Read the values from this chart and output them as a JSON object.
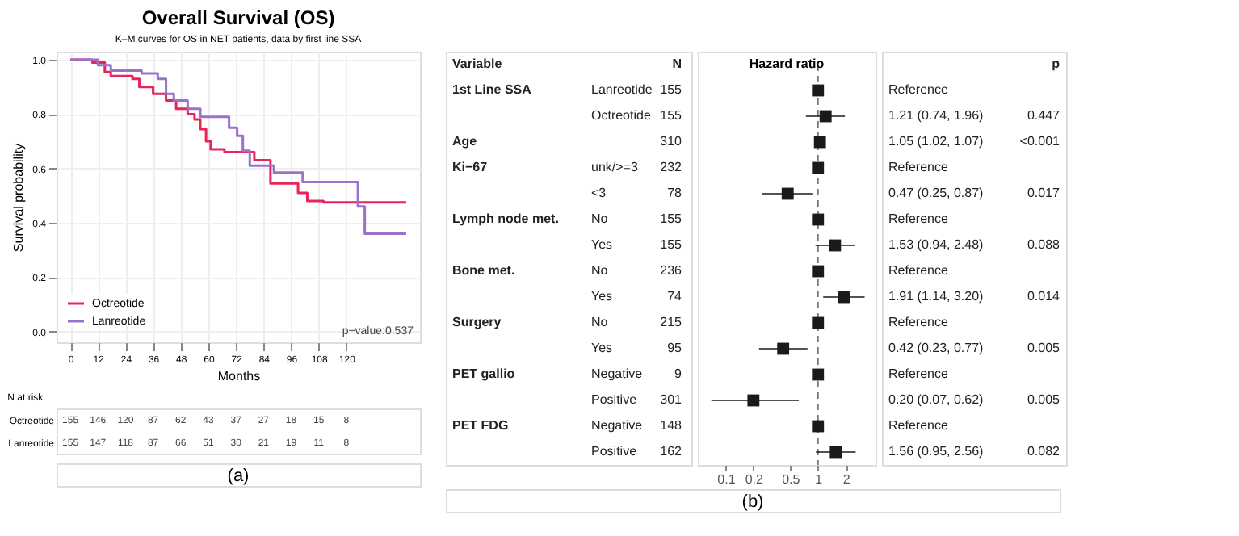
{
  "chart_data": [
    {
      "type": "step",
      "title": "Overall Survival (OS)",
      "subtitle": "K–M curves for OS in NET patients, data by first line SSA",
      "xlabel": "Months",
      "ylabel": "Survival probability",
      "xlim": [
        -6,
        152
      ],
      "ylim": [
        -0.04,
        1.03
      ],
      "xticks": [
        0,
        12,
        24,
        36,
        48,
        60,
        72,
        84,
        96,
        108,
        120
      ],
      "yticks": [
        {
          "value": 0,
          "label": "0.0"
        },
        0.2,
        0.4,
        0.6,
        0.8,
        {
          "value": 1,
          "label": "1.0"
        }
      ],
      "grid": true,
      "legend": "bottom left",
      "series": [
        {
          "name": "Octreotide",
          "color": "#e8245a",
          "x": [
            0,
            9.6,
            15,
            17.6,
            27,
            30,
            36,
            41.6,
            46,
            51,
            54,
            56.5,
            59,
            61,
            67,
            80,
            87,
            99,
            103,
            110,
            146
          ],
          "values": [
            1.0,
            0.99,
            0.955,
            0.94,
            0.93,
            0.9,
            0.875,
            0.85,
            0.82,
            0.8,
            0.78,
            0.745,
            0.7,
            0.67,
            0.66,
            0.63,
            0.545,
            0.51,
            0.48,
            0.475,
            0.475
          ]
        },
        {
          "name": "Lanreotide",
          "color": "#9a72c8",
          "x": [
            0,
            12,
            17.6,
            31,
            38,
            41.6,
            45,
            51,
            56.5,
            69,
            72.5,
            75,
            78,
            88.5,
            101,
            125,
            128,
            146
          ],
          "values": [
            1.0,
            0.98,
            0.96,
            0.95,
            0.93,
            0.875,
            0.85,
            0.82,
            0.79,
            0.75,
            0.72,
            0.665,
            0.61,
            0.585,
            0.55,
            0.46,
            0.36,
            0.36
          ]
        }
      ],
      "annotations": [
        "p−value:0.537",
        "N at risk",
        "(a)",
        "155",
        "146",
        "120",
        "87",
        "62",
        "43",
        "37",
        "27",
        "18",
        "15",
        "8",
        "155",
        "147",
        "118",
        "87",
        "66",
        "51",
        "30",
        "21",
        "19",
        "11",
        "8"
      ]
    },
    {
      "type": "scatter",
      "orientation": "horizontal",
      "marker": "square",
      "log": "x",
      "categories": [
        "Lanreotide",
        "Octreotide",
        null,
        "unk/>=3",
        "<3",
        "No",
        "Yes",
        "No",
        "Yes",
        "No",
        "Yes",
        "Negative",
        "Positive",
        "Negative",
        "Positive"
      ],
      "xlim": [
        0.05,
        4.2
      ],
      "xticks": [
        0.1,
        0.2,
        0.5,
        1,
        2
      ],
      "series": [
        {
          "color": "#1a1a1a",
          "values": [
            1,
            1.21,
            1.05,
            1,
            0.47,
            1,
            1.53,
            1,
            1.91,
            1,
            0.42,
            1,
            0.2,
            1,
            1.56
          ],
          "errors": [
            null,
            [
              0.74,
              1.96
            ],
            [
              1.02,
              1.07
            ],
            null,
            [
              0.25,
              0.87
            ],
            null,
            [
              0.94,
              2.48
            ],
            null,
            [
              1.14,
              3.2
            ],
            null,
            [
              0.23,
              0.77
            ],
            null,
            [
              0.07,
              0.62
            ],
            null,
            [
              0.95,
              2.56
            ]
          ]
        }
      ],
      "ref_lines": [
        {
          "axis": "x",
          "value": 1,
          "color": "#777777",
          "line_style": "dashed"
        }
      ],
      "annotations": [
        "Variable",
        "N",
        "Hazard ratio",
        "p",
        "1st Line SSA",
        "Age",
        "Ki−67",
        "Lymph node met.",
        "Bone met.",
        "Surgery",
        "PET gallio",
        "PET FDG",
        "155",
        "155",
        "310",
        "232",
        "78",
        "155",
        "155",
        "236",
        "74",
        "215",
        "95",
        "9",
        "301",
        "148",
        "162",
        "0.447",
        "<0.001",
        "0.017",
        "0.088",
        "0.014",
        "0.005",
        "0.005",
        "0.082",
        "(b)",
        "Reference",
        "1.21 (0.74, 1.96)",
        "1.05 (1.02, 1.07)",
        "Reference",
        "0.47 (0.25, 0.87)",
        "Reference",
        "1.53 (0.94, 2.48)",
        "Reference",
        "1.91 (1.14, 3.20)",
        "Reference",
        "0.42 (0.23, 0.77)",
        "Reference",
        "0.20 (0.07, 0.62)",
        "Reference",
        "1.56 (0.95, 2.56)"
      ]
    }
  ]
}
